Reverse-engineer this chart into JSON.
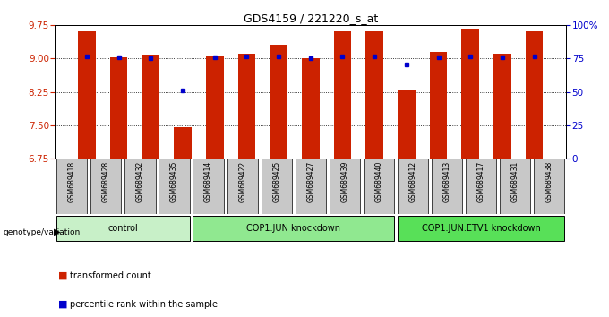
{
  "title": "GDS4159 / 221220_s_at",
  "samples": [
    "GSM689418",
    "GSM689428",
    "GSM689432",
    "GSM689435",
    "GSM689414",
    "GSM689422",
    "GSM689425",
    "GSM689427",
    "GSM689439",
    "GSM689440",
    "GSM689412",
    "GSM689413",
    "GSM689417",
    "GSM689431",
    "GSM689438"
  ],
  "red_values": [
    9.62,
    9.04,
    9.1,
    7.45,
    9.06,
    9.12,
    9.32,
    9.01,
    9.62,
    9.62,
    8.3,
    9.15,
    9.68,
    9.12,
    9.62
  ],
  "blue_values": [
    9.06,
    9.02,
    9.01,
    8.28,
    9.03,
    9.06,
    9.06,
    9.01,
    9.05,
    9.05,
    8.87,
    9.04,
    9.06,
    9.02,
    9.05
  ],
  "groups": [
    {
      "label": "control",
      "start": 0,
      "end": 4,
      "color": "#c8f0c8"
    },
    {
      "label": "COP1.JUN knockdown",
      "start": 4,
      "end": 10,
      "color": "#90e890"
    },
    {
      "label": "COP1.JUN.ETV1 knockdown",
      "start": 10,
      "end": 15,
      "color": "#58e058"
    }
  ],
  "ylim": [
    6.75,
    9.75
  ],
  "yticks": [
    6.75,
    7.5,
    8.25,
    9.0,
    9.75
  ],
  "right_yticks": [
    0,
    25,
    50,
    75,
    100
  ],
  "right_ylim": [
    0,
    100
  ],
  "bar_color": "#cc2200",
  "dot_color": "#0000cc",
  "tick_label_bg": "#c8c8c8",
  "group_colors": [
    "#c8f0c8",
    "#90e890",
    "#58e058"
  ]
}
